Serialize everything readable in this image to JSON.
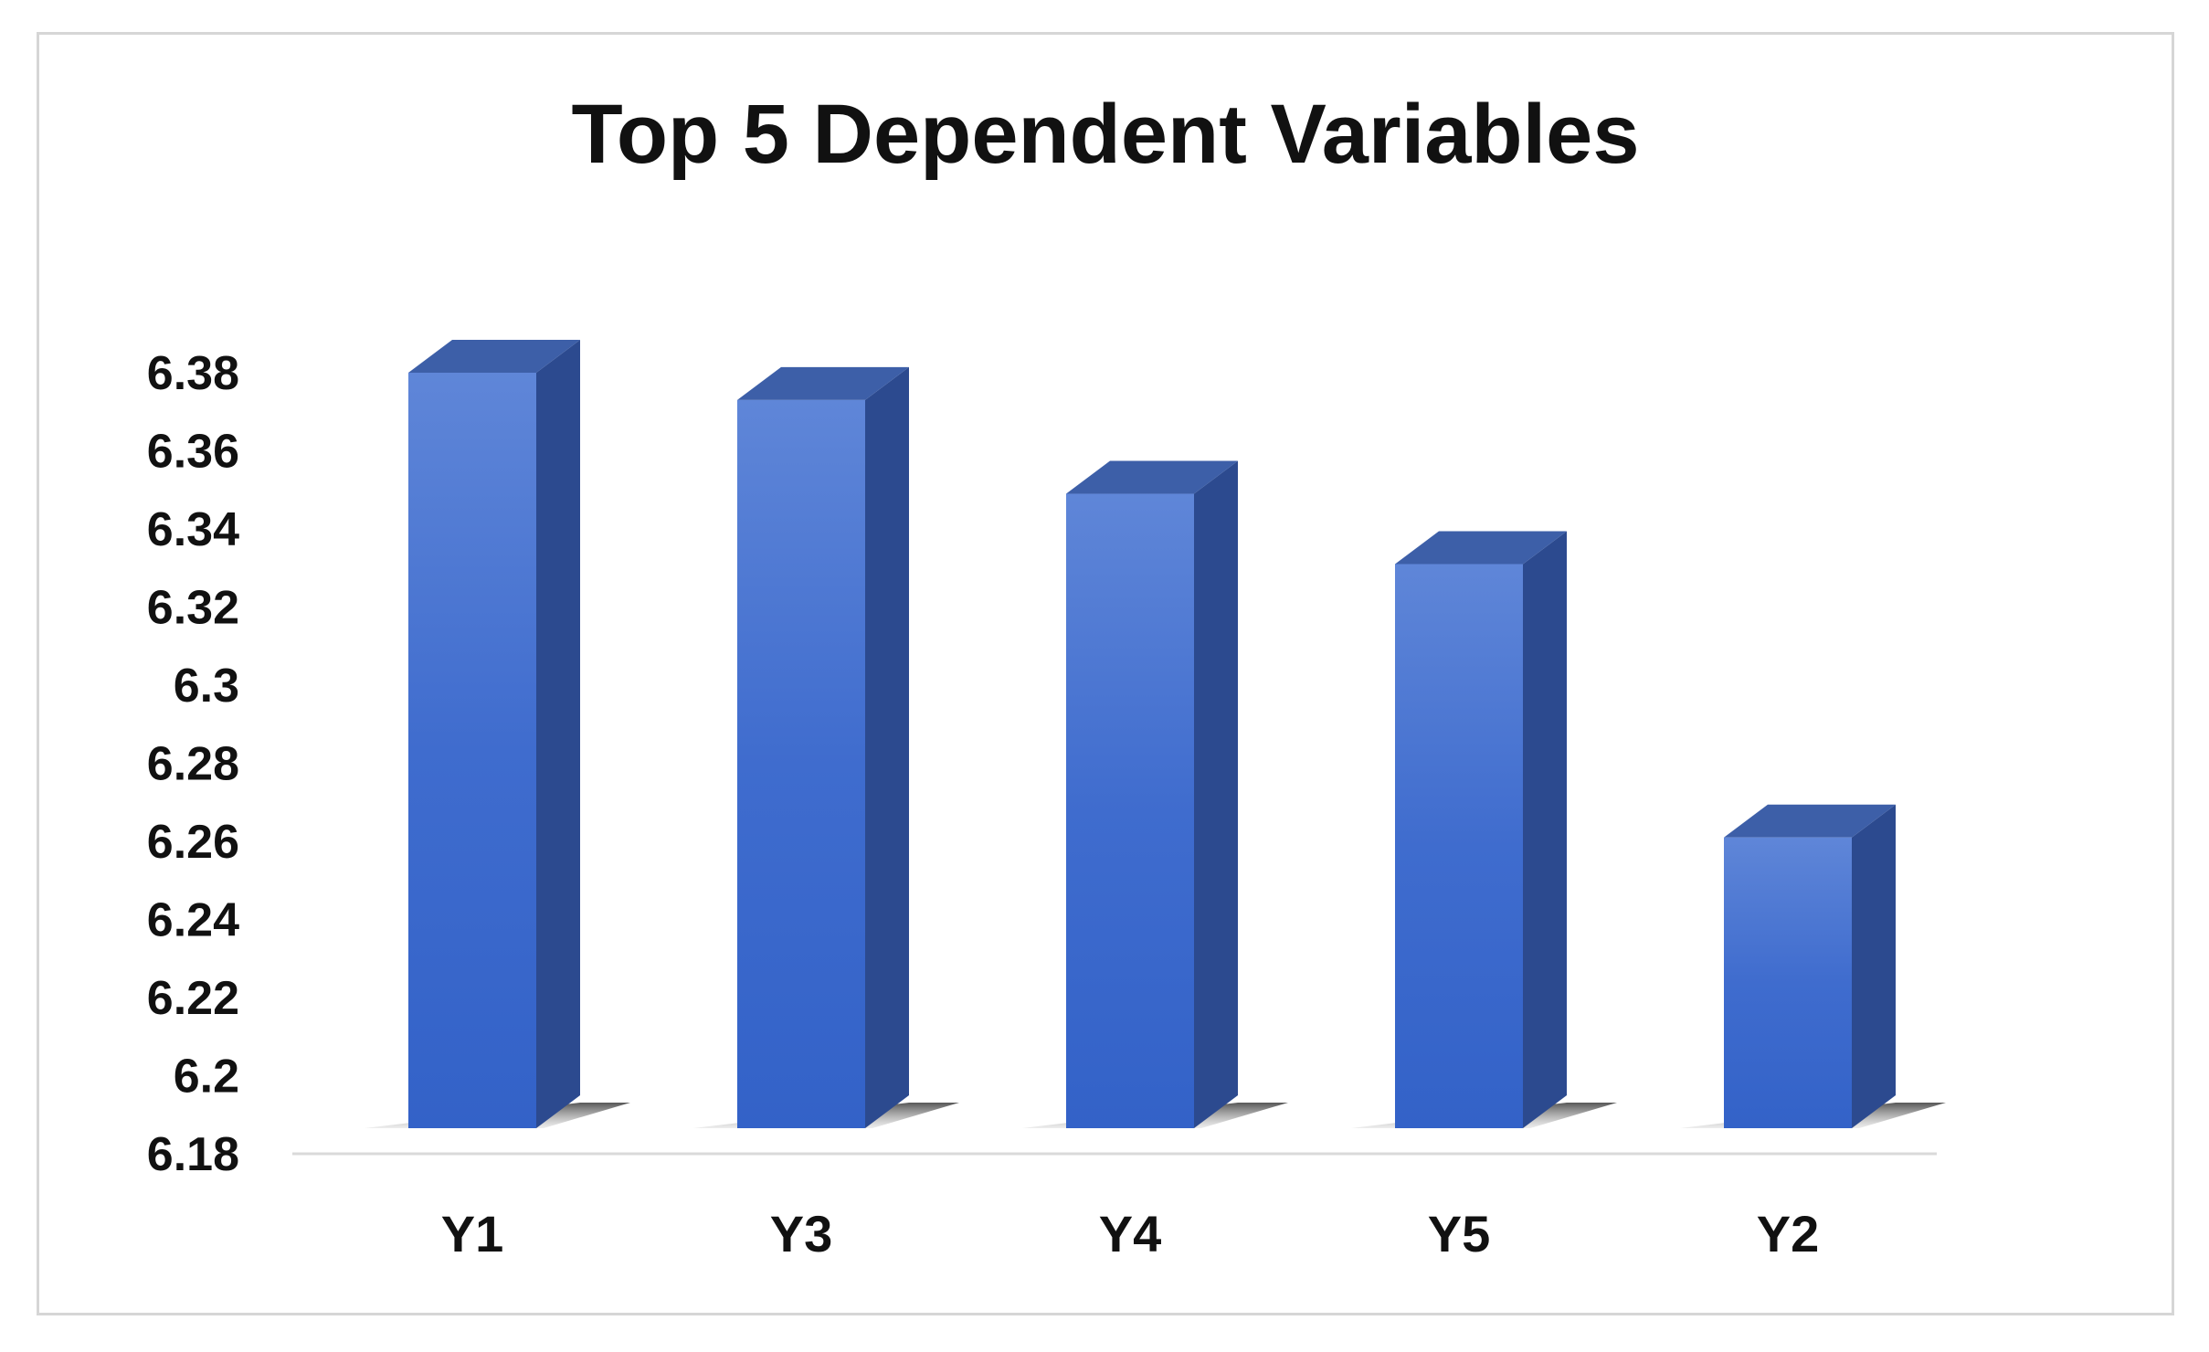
{
  "chart_data": {
    "type": "bar",
    "title": "Top 5 Dependent Variables",
    "xlabel": "",
    "ylabel": "",
    "categories": [
      "Y1",
      "Y3",
      "Y4",
      "Y5",
      "Y2"
    ],
    "values": [
      6.38,
      6.373,
      6.349,
      6.331,
      6.261
    ],
    "ylim": [
      6.18,
      6.38
    ],
    "yticks": [
      "6.38",
      "6.36",
      "6.34",
      "6.32",
      "6.3",
      "6.28",
      "6.26",
      "6.24",
      "6.22",
      "6.2",
      "6.18"
    ],
    "grid": false,
    "legend": "none",
    "style": "3d-column",
    "colors": {
      "front": "#4a74d4",
      "side": "#2c4a8f",
      "top": "#3d5fa8",
      "axis": "#d9d9d9"
    }
  }
}
